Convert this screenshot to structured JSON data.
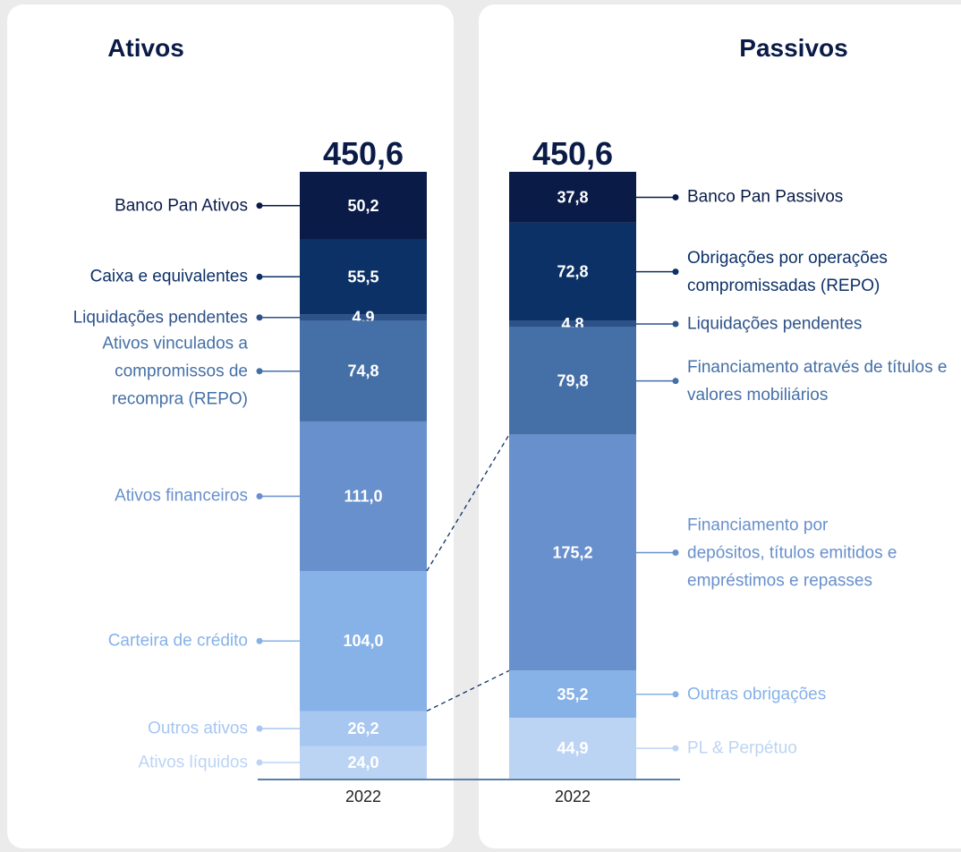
{
  "chart_data": [
    {
      "type": "bar",
      "stacked": true,
      "title": "Ativos",
      "categories": [
        "2022"
      ],
      "total": {
        "value": 450.6,
        "label": "450,6"
      },
      "series": [
        {
          "name": "Banco Pan Ativos",
          "color": "#0a1b48",
          "values": [
            50.2
          ],
          "value_labels": [
            "50,2"
          ]
        },
        {
          "name": "Caixa e equivalentes",
          "color": "#0c3167",
          "values": [
            55.5
          ],
          "value_labels": [
            "55,5"
          ]
        },
        {
          "name": "Liquidações pendentes",
          "color": "#2d5289",
          "values": [
            4.9
          ],
          "value_labels": [
            "4,9"
          ]
        },
        {
          "name": "Ativos vinculados a compromissos de recompra (REPO)",
          "color": "#4570a7",
          "values": [
            74.8
          ],
          "value_labels": [
            "74,8"
          ]
        },
        {
          "name": "Ativos financeiros",
          "color": "#6890cd",
          "values": [
            111.0
          ],
          "value_labels": [
            "111,0"
          ]
        },
        {
          "name": "Carteira de crédito",
          "color": "#86b2e8",
          "values": [
            104.0
          ],
          "value_labels": [
            "104,0"
          ]
        },
        {
          "name": "Outros ativos",
          "color": "#a7c6f0",
          "values": [
            26.2
          ],
          "value_labels": [
            "26,2"
          ]
        },
        {
          "name": "Ativos líquidos",
          "color": "#bcd4f3",
          "values": [
            24.0
          ],
          "value_labels": [
            "24,0"
          ]
        }
      ]
    },
    {
      "type": "bar",
      "stacked": true,
      "title": "Passivos",
      "categories": [
        "2022"
      ],
      "total": {
        "value": 450.6,
        "label": "450,6"
      },
      "series": [
        {
          "name": "Banco Pan Passivos",
          "color": "#0a1b48",
          "values": [
            37.8
          ],
          "value_labels": [
            "37,8"
          ]
        },
        {
          "name": "Obrigações por operações compromissadas (REPO)",
          "color": "#0c3167",
          "values": [
            72.8
          ],
          "value_labels": [
            "72,8"
          ]
        },
        {
          "name": "Liquidações pendentes",
          "color": "#2d5289",
          "values": [
            4.8
          ],
          "value_labels": [
            "4,8"
          ]
        },
        {
          "name": "Financiamento através de títulos e valores mobiliários",
          "color": "#4570a7",
          "values": [
            79.8
          ],
          "value_labels": [
            "79,8"
          ]
        },
        {
          "name": "Financiamento por depósitos, títulos emitidos e empréstimos e repasses",
          "color": "#6890cd",
          "values": [
            175.2
          ],
          "value_labels": [
            "175,2"
          ]
        },
        {
          "name": "Outras obrigações",
          "color": "#86b2e8",
          "values": [
            35.2
          ],
          "value_labels": [
            "35,2"
          ]
        },
        {
          "name": "PL & Perpétuo",
          "color": "#bcd4f3",
          "values": [
            44.9
          ],
          "value_labels": [
            "44,9"
          ]
        }
      ]
    }
  ]
}
